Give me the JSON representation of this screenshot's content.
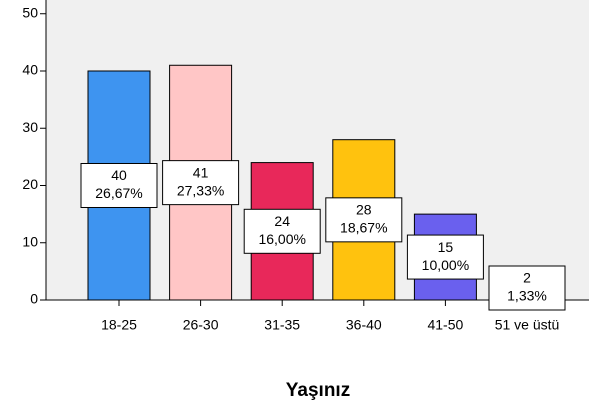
{
  "chart_data": {
    "type": "bar",
    "x_label": "Yaşınız",
    "categories": [
      "18-25",
      "26-30",
      "31-35",
      "36-40",
      "41-50",
      "51 ve üstü"
    ],
    "values": [
      40,
      41,
      24,
      28,
      15,
      2
    ],
    "percent_labels": [
      "26,67%",
      "27,33%",
      "16,00%",
      "18,67%",
      "10,00%",
      "1,33%"
    ],
    "colors": [
      "#3e94f0",
      "#ffc6c6",
      "#e8285a",
      "#ffc20e",
      "#6a60ee",
      "#ffffff"
    ],
    "ylim": [
      0,
      52.4
    ],
    "yticks": [
      0,
      10,
      20,
      30,
      40,
      50
    ],
    "grid": false
  }
}
